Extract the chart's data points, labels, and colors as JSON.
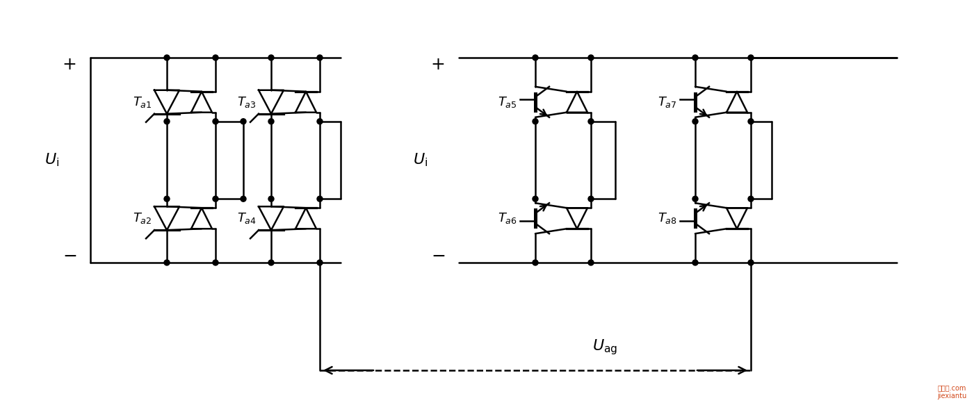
{
  "bg_color": "#ffffff",
  "fig_width": 14.01,
  "fig_height": 5.93
}
